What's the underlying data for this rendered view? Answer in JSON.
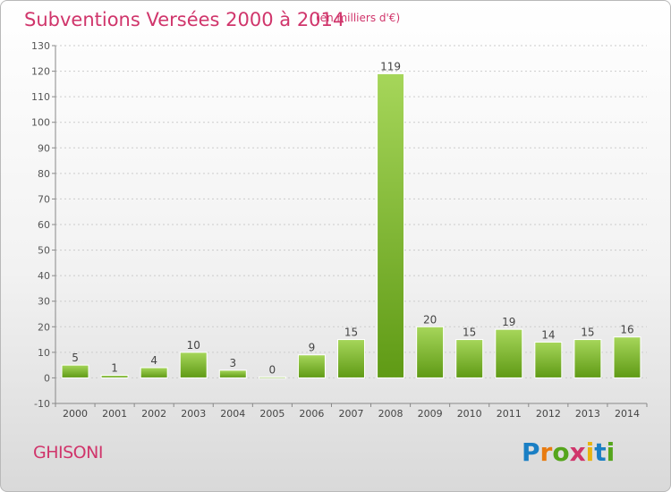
{
  "header": {
    "title": "Subventions Versées 2000 à 2014",
    "subtitle": "(en milliers d'€)"
  },
  "footer": {
    "commune": "GHISONI",
    "logo_text": "Proxiti"
  },
  "colors": {
    "title": "#d0356b",
    "bar_light": "#a6d65a",
    "bar_dark": "#5f9a15",
    "grid": "#cccccc",
    "axis": "#888888"
  },
  "chart_data": {
    "type": "bar",
    "title": "Subventions Versées 2000 à 2014",
    "subtitle": "(en milliers d'€)",
    "categories": [
      "2000",
      "2001",
      "2002",
      "2003",
      "2004",
      "2005",
      "2006",
      "2007",
      "2008",
      "2009",
      "2010",
      "2011",
      "2012",
      "2013",
      "2014"
    ],
    "values": [
      5,
      1,
      4,
      10,
      3,
      0,
      9,
      15,
      119,
      20,
      15,
      19,
      14,
      15,
      16
    ],
    "ylim": [
      -10,
      130
    ],
    "yticks": [
      -10,
      0,
      10,
      20,
      30,
      40,
      50,
      60,
      70,
      80,
      90,
      100,
      110,
      120,
      130
    ],
    "grid": true,
    "data_labels": true
  }
}
